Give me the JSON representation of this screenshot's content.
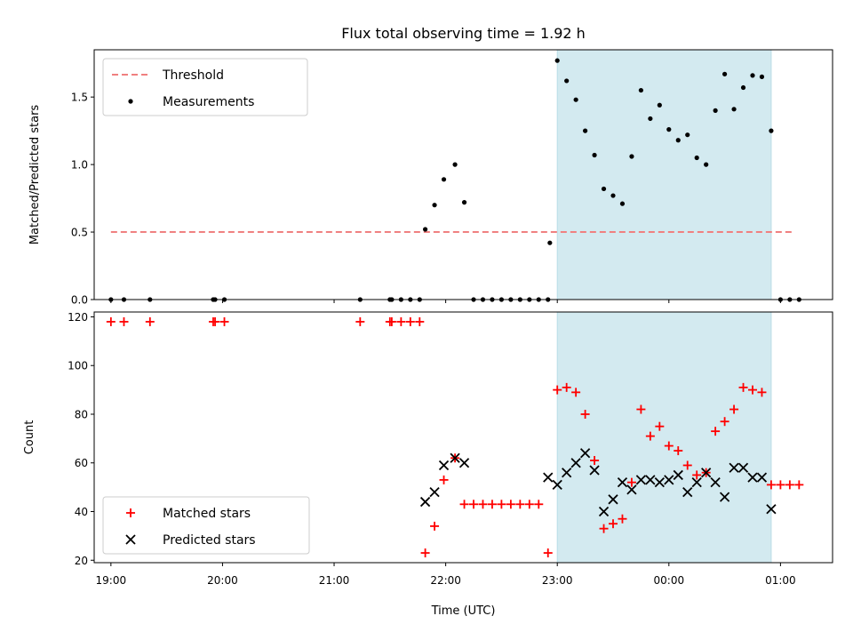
{
  "chart_data": {
    "type": "scatter",
    "title": "Flux total observing time = 1.92 h",
    "xlabel": "Time (UTC)",
    "x_ticks": [
      "19:00",
      "20:00",
      "21:00",
      "22:00",
      "23:00",
      "00:00",
      "01:00"
    ],
    "xlim": [
      "18:51",
      "01:28"
    ],
    "highlight_span": {
      "start": "23:00",
      "end": "00:55",
      "color": "#d3eaf0"
    },
    "panels": [
      {
        "ylabel": "Matched/Predicted stars",
        "ylim": [
          0,
          1.85
        ],
        "y_ticks": [
          "0.0",
          "0.5",
          "1.0",
          "1.5"
        ],
        "y_tick_values": [
          0,
          0.5,
          1.0,
          1.5
        ],
        "legend": {
          "position": "upper left",
          "items": [
            "Threshold",
            "Measurements"
          ]
        },
        "series": [
          {
            "name": "Threshold",
            "style": "dashed-line",
            "color": "#f08080",
            "points": [
              [
                "19:00",
                0.5
              ],
              [
                "01:06",
                0.5
              ]
            ]
          },
          {
            "name": "Measurements",
            "style": "dot",
            "color": "#000000",
            "points": [
              [
                "19:00",
                0
              ],
              [
                "19:07",
                0
              ],
              [
                "19:21",
                0
              ],
              [
                "19:55",
                0
              ],
              [
                "19:56",
                0
              ],
              [
                "20:01",
                0
              ],
              [
                "21:14",
                0
              ],
              [
                "21:30",
                0
              ],
              [
                "21:31",
                0
              ],
              [
                "21:36",
                0
              ],
              [
                "21:41",
                0
              ],
              [
                "21:46",
                0
              ],
              [
                "21:49",
                0.52
              ],
              [
                "21:54",
                0.7
              ],
              [
                "21:59",
                0.89
              ],
              [
                "22:05",
                1.0
              ],
              [
                "22:10",
                0.72
              ],
              [
                "22:15",
                0
              ],
              [
                "22:20",
                0
              ],
              [
                "22:25",
                0
              ],
              [
                "22:30",
                0
              ],
              [
                "22:35",
                0
              ],
              [
                "22:40",
                0
              ],
              [
                "22:45",
                0
              ],
              [
                "22:50",
                0
              ],
              [
                "22:55",
                0
              ],
              [
                "22:56",
                0.42
              ],
              [
                "23:00",
                1.77
              ],
              [
                "23:05",
                1.62
              ],
              [
                "23:10",
                1.48
              ],
              [
                "23:15",
                1.25
              ],
              [
                "23:20",
                1.07
              ],
              [
                "23:25",
                0.82
              ],
              [
                "23:30",
                0.77
              ],
              [
                "23:35",
                0.71
              ],
              [
                "23:40",
                1.06
              ],
              [
                "23:45",
                1.55
              ],
              [
                "23:50",
                1.34
              ],
              [
                "23:55",
                1.44
              ],
              [
                "00:00",
                1.26
              ],
              [
                "00:05",
                1.18
              ],
              [
                "00:10",
                1.22
              ],
              [
                "00:15",
                1.05
              ],
              [
                "00:20",
                1.0
              ],
              [
                "00:25",
                1.4
              ],
              [
                "00:30",
                1.67
              ],
              [
                "00:35",
                1.41
              ],
              [
                "00:40",
                1.57
              ],
              [
                "00:45",
                1.66
              ],
              [
                "00:50",
                1.65
              ],
              [
                "00:55",
                1.25
              ],
              [
                "01:00",
                0
              ],
              [
                "01:05",
                0
              ],
              [
                "01:10",
                0
              ]
            ]
          }
        ]
      },
      {
        "ylabel": "Count",
        "ylim": [
          19,
          122
        ],
        "y_ticks": [
          "20",
          "40",
          "60",
          "80",
          "100",
          "120"
        ],
        "y_tick_values": [
          20,
          40,
          60,
          80,
          100,
          120
        ],
        "legend": {
          "position": "lower left",
          "items": [
            "Matched stars",
            "Predicted stars"
          ]
        },
        "series": [
          {
            "name": "Matched stars",
            "style": "plus",
            "color": "#ff0000",
            "points": [
              [
                "19:00",
                118
              ],
              [
                "19:07",
                118
              ],
              [
                "19:21",
                118
              ],
              [
                "19:55",
                118
              ],
              [
                "19:56",
                118
              ],
              [
                "20:01",
                118
              ],
              [
                "21:14",
                118
              ],
              [
                "21:30",
                118
              ],
              [
                "21:31",
                118
              ],
              [
                "21:36",
                118
              ],
              [
                "21:41",
                118
              ],
              [
                "21:46",
                118
              ],
              [
                "21:49",
                23
              ],
              [
                "21:54",
                34
              ],
              [
                "21:59",
                53
              ],
              [
                "22:05",
                62
              ],
              [
                "22:10",
                43
              ],
              [
                "22:15",
                43
              ],
              [
                "22:20",
                43
              ],
              [
                "22:25",
                43
              ],
              [
                "22:30",
                43
              ],
              [
                "22:35",
                43
              ],
              [
                "22:40",
                43
              ],
              [
                "22:45",
                43
              ],
              [
                "22:50",
                43
              ],
              [
                "22:55",
                23
              ],
              [
                "23:00",
                90
              ],
              [
                "23:05",
                91
              ],
              [
                "23:10",
                89
              ],
              [
                "23:15",
                80
              ],
              [
                "23:20",
                61
              ],
              [
                "23:25",
                33
              ],
              [
                "23:30",
                35
              ],
              [
                "23:35",
                37
              ],
              [
                "23:40",
                52
              ],
              [
                "23:45",
                82
              ],
              [
                "23:50",
                71
              ],
              [
                "23:55",
                75
              ],
              [
                "00:00",
                67
              ],
              [
                "00:05",
                65
              ],
              [
                "00:10",
                59
              ],
              [
                "00:15",
                55
              ],
              [
                "00:20",
                56
              ],
              [
                "00:25",
                73
              ],
              [
                "00:30",
                77
              ],
              [
                "00:35",
                82
              ],
              [
                "00:40",
                91
              ],
              [
                "00:45",
                90
              ],
              [
                "00:50",
                89
              ],
              [
                "00:55",
                51
              ],
              [
                "01:00",
                51
              ],
              [
                "01:05",
                51
              ],
              [
                "01:10",
                51
              ]
            ]
          },
          {
            "name": "Predicted stars",
            "style": "x",
            "color": "#000000",
            "points": [
              [
                "21:49",
                44
              ],
              [
                "21:54",
                48
              ],
              [
                "21:59",
                59
              ],
              [
                "22:05",
                62
              ],
              [
                "22:10",
                60
              ],
              [
                "22:55",
                54
              ],
              [
                "23:00",
                51
              ],
              [
                "23:05",
                56
              ],
              [
                "23:10",
                60
              ],
              [
                "23:15",
                64
              ],
              [
                "23:20",
                57
              ],
              [
                "23:25",
                40
              ],
              [
                "23:30",
                45
              ],
              [
                "23:35",
                52
              ],
              [
                "23:40",
                49
              ],
              [
                "23:45",
                53
              ],
              [
                "23:50",
                53
              ],
              [
                "23:55",
                52
              ],
              [
                "00:00",
                53
              ],
              [
                "00:05",
                55
              ],
              [
                "00:10",
                48
              ],
              [
                "00:15",
                52
              ],
              [
                "00:20",
                56
              ],
              [
                "00:25",
                52
              ],
              [
                "00:30",
                46
              ],
              [
                "00:35",
                58
              ],
              [
                "00:40",
                58
              ],
              [
                "00:45",
                54
              ],
              [
                "00:50",
                54
              ],
              [
                "00:55",
                41
              ]
            ]
          }
        ]
      }
    ]
  }
}
